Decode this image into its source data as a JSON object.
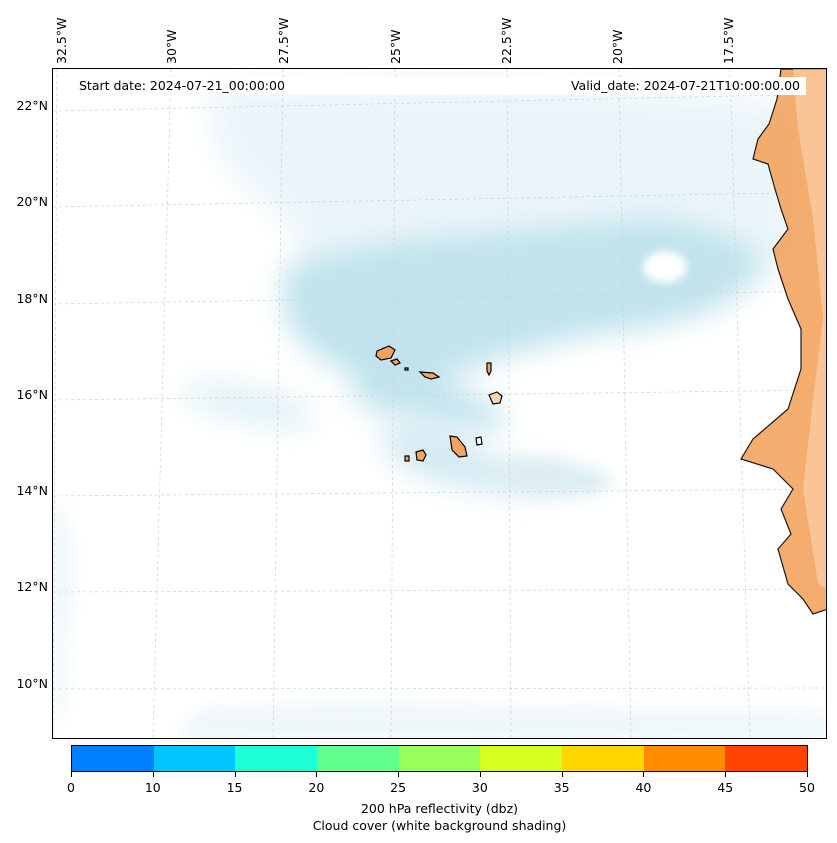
{
  "header": {
    "start_date": "Start date: 2024-07-21_00:00:00",
    "valid_date": "Valid_date: 2024-07-21T10:00:00.00"
  },
  "map": {
    "lon_labels": [
      "32.5°W",
      "30°W",
      "27.5°W",
      "25°W",
      "22.5°W",
      "20°W",
      "17.5°W"
    ],
    "lat_labels": [
      "22°N",
      "20°N",
      "18°N",
      "16°N",
      "14°N",
      "12°N",
      "10°N"
    ],
    "gridlines": true,
    "cloud_color": "#add8e6",
    "land_color": "#f4a460",
    "islands": [
      "Santo Antão",
      "São Vicente",
      "Santa Luzia",
      "São Nicolau",
      "Sal",
      "Boa Vista",
      "Maio",
      "Santiago",
      "Fogo",
      "Brava"
    ]
  },
  "colorbar": {
    "ticks": [
      "0",
      "10",
      "15",
      "20",
      "25",
      "30",
      "35",
      "40",
      "45",
      "50"
    ],
    "colors": [
      "#007fff",
      "#00c5ff",
      "#1effd8",
      "#60ff8e",
      "#99ff5a",
      "#d4ff1f",
      "#ffd700",
      "#ff8c00",
      "#ff4500"
    ],
    "label": "200 hPa reflectivity (dbz)",
    "sublabel": "Cloud cover (white background shading)"
  }
}
